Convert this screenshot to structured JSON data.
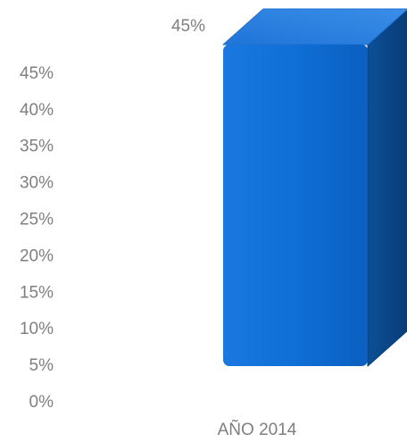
{
  "chart_data": {
    "type": "bar",
    "style": "3d-column",
    "categories": [
      "AÑO 2014"
    ],
    "series": [
      {
        "values": [
          0.45
        ]
      }
    ],
    "data_labels": [
      "45%"
    ],
    "y_ticks": [
      "0%",
      "5%",
      "10%",
      "15%",
      "20%",
      "25%",
      "30%",
      "35%",
      "40%",
      "45%"
    ],
    "ylim": [
      0,
      0.45
    ],
    "grid": false,
    "legend": "none",
    "colors": {
      "front": "#0f6fd6",
      "front_light": "#2b8af0",
      "top": "#2a7fe0",
      "side": "#0a4a8e",
      "text": "#7f7f7f"
    }
  }
}
